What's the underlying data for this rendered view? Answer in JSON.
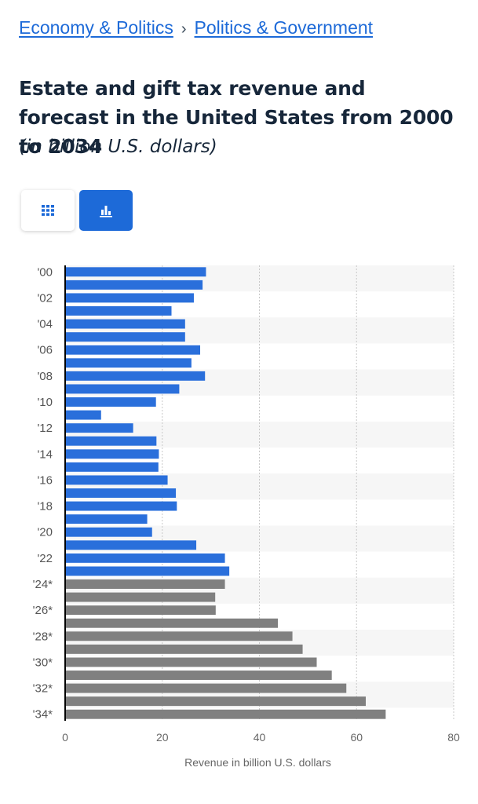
{
  "breadcrumb": {
    "item1": "Economy & Politics",
    "separator": "›",
    "item2": "Politics & Government"
  },
  "title": "Estate and gift tax revenue and forecast in the United States from 2000 to 2034",
  "subtitle": "(in billion U.S. dollars)",
  "toggles": {
    "table_icon": "table-grid-icon",
    "chart_icon": "bar-chart-icon",
    "active": "chart"
  },
  "colors": {
    "actual": "#2a6fdb",
    "forecast": "#808080",
    "accent": "#1d6ad8"
  },
  "chart_data": {
    "type": "bar",
    "orientation": "horizontal",
    "categories": [
      "'00",
      "'01",
      "'02",
      "'03",
      "'04",
      "'05",
      "'06",
      "'07",
      "'08",
      "'09",
      "'10",
      "'11",
      "'12",
      "'13",
      "'14",
      "'15",
      "'16",
      "'17",
      "'18",
      "'19",
      "'20",
      "'21",
      "'22",
      "'23",
      "'24*",
      "'25*",
      "'26*",
      "'27*",
      "'28*",
      "'29*",
      "'30*",
      "'31*",
      "'32*",
      "'33*",
      "'34*"
    ],
    "tick_labels_shown": [
      "'00",
      "'02",
      "'04",
      "'06",
      "'08",
      "'10",
      "'12",
      "'14",
      "'16",
      "'18",
      "'20",
      "'22",
      "'24*",
      "'26*",
      "'28*",
      "'30*",
      "'32*",
      "'34*"
    ],
    "values": [
      29,
      28.3,
      26.5,
      21.9,
      24.7,
      24.7,
      27.8,
      26,
      28.8,
      23.5,
      18.7,
      7.4,
      14,
      18.8,
      19.3,
      19.2,
      21.1,
      22.8,
      23,
      16.9,
      17.9,
      27,
      32.9,
      33.8,
      32.9,
      30.9,
      31,
      43.8,
      46.8,
      48.9,
      51.8,
      54.9,
      57.9,
      61.9,
      66
    ],
    "forecast_from_index": 24,
    "xlabel": "Revenue in billion U.S. dollars",
    "ylabel": "",
    "xlim": [
      0,
      80
    ],
    "xticks": [
      0,
      20,
      40,
      60,
      80
    ],
    "grid": true
  }
}
